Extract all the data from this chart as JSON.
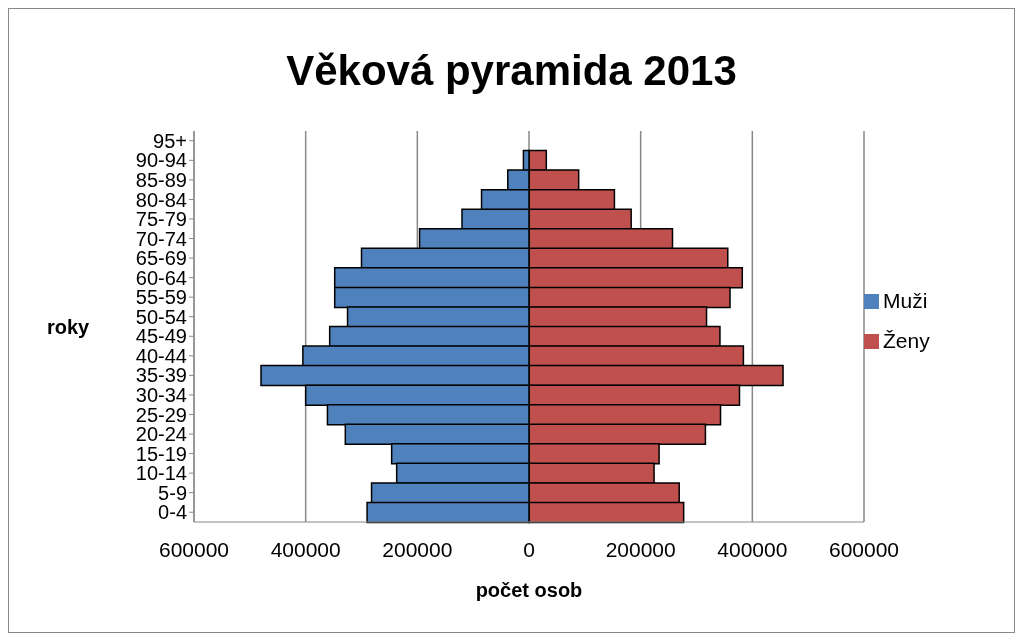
{
  "chart_data": {
    "type": "bar",
    "orientation": "horizontal",
    "stacked": true,
    "title": "Věková pyramida 2013",
    "xlabel": "počet osob",
    "ylabel": "roky",
    "categories": [
      "95+",
      "90-94",
      "85-89",
      "80-84",
      "75-79",
      "70-74",
      "65-69",
      "60-64",
      "55-59",
      "50-54",
      "45-49",
      "40-44",
      "35-39",
      "30-34",
      "25-29",
      "20-24",
      "15-19",
      "10-14",
      "5-9",
      "0-4"
    ],
    "series": [
      {
        "name": "Ženy",
        "color": "#c0504d",
        "values": [
          null,
          31000,
          89000,
          153000,
          183000,
          257000,
          356000,
          382000,
          360000,
          318000,
          342000,
          384000,
          455000,
          377000,
          343000,
          316000,
          233000,
          224000,
          269000,
          277000
        ]
      },
      {
        "name": "Muži",
        "color": "#4f81bd",
        "values": [
          null,
          -10000,
          -38000,
          -85000,
          -120000,
          -196000,
          -300000,
          -348000,
          -348000,
          -325000,
          -357000,
          -405000,
          -480000,
          -400000,
          -361000,
          -329000,
          -246000,
          -237000,
          -282000,
          -290000
        ]
      }
    ],
    "xlim": [
      -600000,
      600000
    ],
    "xticks": [
      {
        "value": -600000,
        "label": "600000"
      },
      {
        "value": -400000,
        "label": "400000"
      },
      {
        "value": -200000,
        "label": "200000"
      },
      0,
      200000,
      400000,
      600000
    ],
    "grid": "x",
    "legend": "right"
  }
}
